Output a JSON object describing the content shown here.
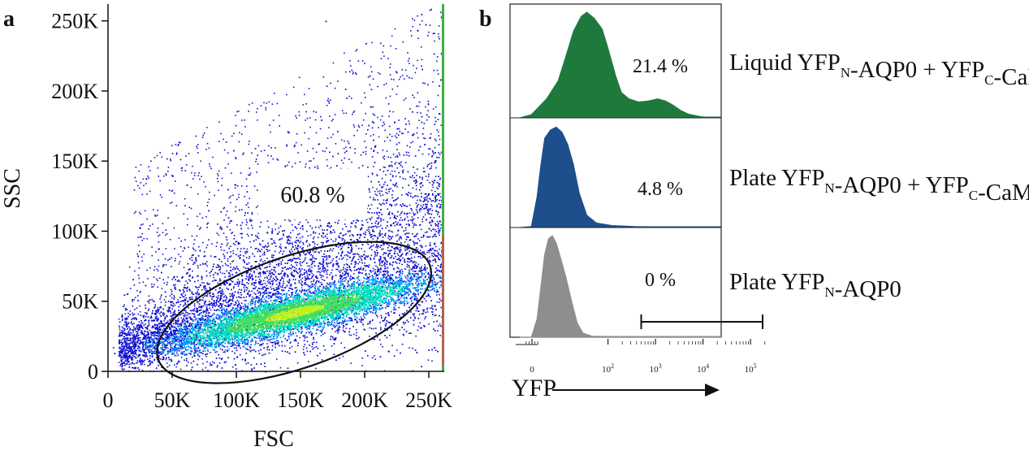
{
  "chart_data": [
    {
      "panel": "a",
      "type": "scatter",
      "xlabel": "FSC",
      "ylabel": "SSC",
      "xlim": [
        0,
        262000
      ],
      "ylim": [
        0,
        262000
      ],
      "x_ticks": [
        {
          "value": 0,
          "label": "0"
        },
        {
          "value": 50000,
          "label": "50K"
        },
        {
          "value": 100000,
          "label": "100K"
        },
        {
          "value": 150000,
          "label": "150K"
        },
        {
          "value": 200000,
          "label": "200K"
        },
        {
          "value": 250000,
          "label": "250K"
        }
      ],
      "y_ticks": [
        {
          "value": 0,
          "label": "0"
        },
        {
          "value": 50000,
          "label": "50K"
        },
        {
          "value": 100000,
          "label": "100K"
        },
        {
          "value": 150000,
          "label": "150K"
        },
        {
          "value": 200000,
          "label": "200K"
        },
        {
          "value": 250000,
          "label": "250K"
        }
      ],
      "gate": {
        "shape": "ellipse",
        "center": [
          145000,
          42000
        ],
        "semi_major_axis": 112000,
        "semi_minor_axis": 17000,
        "angle_deg": 19,
        "percent_label": "60.8 %"
      },
      "density_colormap": [
        "#1010d0",
        "#00a0ff",
        "#00e0c0",
        "#40e060",
        "#c0f020"
      ],
      "grid": false
    },
    {
      "panel": "b",
      "type": "area",
      "xlabel": "YFP",
      "x_scale": "biexponential",
      "x_ticks": [
        {
          "value": 0,
          "label": "0"
        },
        {
          "value": 100,
          "label": "10",
          "sup": "2"
        },
        {
          "value": 1000,
          "label": "10",
          "sup": "3"
        },
        {
          "value": 10000,
          "label": "10",
          "sup": "4"
        },
        {
          "value": 100000,
          "label": "10",
          "sup": "5"
        }
      ],
      "gate_range": [
        500,
        180000
      ],
      "histograms": [
        {
          "sample_parts": [
            {
              "t": "Liquid YFP"
            },
            {
              "t": "N",
              "sub": true
            },
            {
              "t": "-AQP0 + YFP"
            },
            {
              "t": "C",
              "sub": true
            },
            {
              "t": "-CaM"
            }
          ],
          "percent": "21.4 %",
          "color": "#1e7a3c",
          "profile": [
            [
              0,
              0
            ],
            [
              6,
              0.03
            ],
            [
              14,
              0.18
            ],
            [
              20,
              0.35
            ],
            [
              24,
              0.58
            ],
            [
              28,
              0.82
            ],
            [
              32,
              0.96
            ],
            [
              35,
              1.0
            ],
            [
              39,
              0.94
            ],
            [
              43,
              0.84
            ],
            [
              46,
              0.66
            ],
            [
              50,
              0.4
            ],
            [
              53,
              0.24
            ],
            [
              57,
              0.18
            ],
            [
              62,
              0.15
            ],
            [
              67,
              0.16
            ],
            [
              72,
              0.18
            ],
            [
              76,
              0.16
            ],
            [
              80,
              0.12
            ],
            [
              84,
              0.07
            ],
            [
              88,
              0.035
            ],
            [
              94,
              0.012
            ],
            [
              100,
              0
            ]
          ]
        },
        {
          "sample_parts": [
            {
              "t": "Plate YFP"
            },
            {
              "t": "N",
              "sub": true
            },
            {
              "t": "-AQP0 + YFP"
            },
            {
              "t": "C",
              "sub": true
            },
            {
              "t": "-CaM"
            }
          ],
          "percent": "4.8 %",
          "color": "#1f4e8c",
          "profile": [
            [
              0,
              0
            ],
            [
              6,
              0.01
            ],
            [
              9,
              0.3
            ],
            [
              11,
              0.62
            ],
            [
              13,
              0.88
            ],
            [
              16,
              0.96
            ],
            [
              19,
              0.99
            ],
            [
              22,
              0.94
            ],
            [
              25,
              0.82
            ],
            [
              28,
              0.62
            ],
            [
              31,
              0.34
            ],
            [
              35,
              0.12
            ],
            [
              40,
              0.045
            ],
            [
              48,
              0.02
            ],
            [
              60,
              0.01
            ],
            [
              100,
              0
            ]
          ]
        },
        {
          "sample_parts": [
            {
              "t": "Plate YFP"
            },
            {
              "t": "N",
              "sub": true
            },
            {
              "t": "-AQP0"
            }
          ],
          "percent": "0 %",
          "color": "#8e8e8e",
          "profile": [
            [
              0,
              0
            ],
            [
              6,
              0
            ],
            [
              9,
              0.18
            ],
            [
              11,
              0.5
            ],
            [
              13,
              0.82
            ],
            [
              15,
              0.97
            ],
            [
              17,
              1.0
            ],
            [
              19,
              0.93
            ],
            [
              21,
              0.8
            ],
            [
              24,
              0.6
            ],
            [
              27,
              0.36
            ],
            [
              30,
              0.14
            ],
            [
              33,
              0.04
            ],
            [
              38,
              0.01
            ],
            [
              100,
              0
            ]
          ]
        }
      ]
    }
  ]
}
